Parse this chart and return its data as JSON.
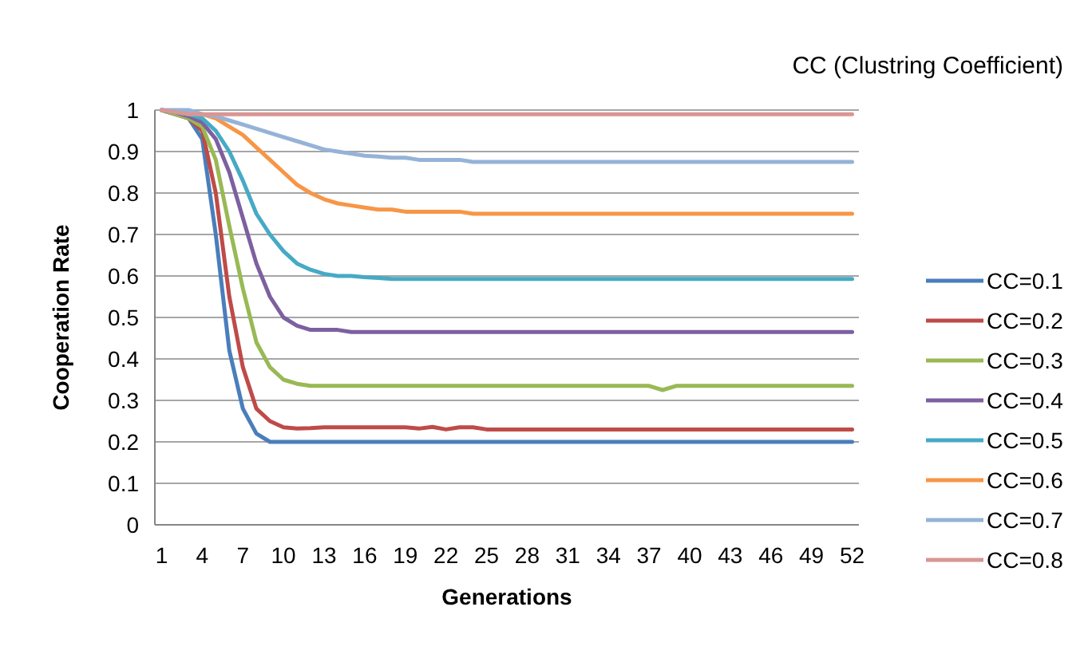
{
  "chart_data": {
    "type": "line",
    "legend_title": "CC (Clustring Coefficient)",
    "xlabel": "Generations",
    "ylabel": "Cooperation Rate",
    "x": [
      1,
      2,
      3,
      4,
      5,
      6,
      7,
      8,
      9,
      10,
      11,
      12,
      13,
      14,
      15,
      16,
      17,
      18,
      19,
      20,
      21,
      22,
      23,
      24,
      25,
      26,
      27,
      28,
      29,
      30,
      31,
      32,
      33,
      34,
      35,
      36,
      37,
      38,
      39,
      40,
      41,
      42,
      43,
      44,
      45,
      46,
      47,
      48,
      49,
      50,
      51,
      52
    ],
    "xlim": [
      0.5,
      52.5
    ],
    "xticks": [
      1,
      4,
      7,
      10,
      13,
      16,
      19,
      22,
      25,
      28,
      31,
      34,
      37,
      40,
      43,
      46,
      49,
      52
    ],
    "ylim": [
      0,
      1
    ],
    "yticks": [
      0,
      0.1,
      0.2,
      0.3,
      0.4,
      0.5,
      0.6,
      0.7,
      0.8,
      0.9,
      1
    ],
    "grid": "y",
    "legend": "right",
    "marker": "none",
    "line_style": "solid",
    "series": [
      {
        "name": "CC=0.1",
        "color": "#4a7ebb",
        "values": [
          1,
          0.99,
          0.98,
          0.93,
          0.7,
          0.42,
          0.28,
          0.22,
          0.2,
          0.2,
          0.2,
          0.2,
          0.2,
          0.2,
          0.2,
          0.2,
          0.2,
          0.2,
          0.2,
          0.2,
          0.2,
          0.2,
          0.2,
          0.2,
          0.2,
          0.2,
          0.2,
          0.2,
          0.2,
          0.2,
          0.2,
          0.2,
          0.2,
          0.2,
          0.2,
          0.2,
          0.2,
          0.2,
          0.2,
          0.2,
          0.2,
          0.2,
          0.2,
          0.2,
          0.2,
          0.2,
          0.2,
          0.2,
          0.2,
          0.2,
          0.2,
          0.2
        ]
      },
      {
        "name": "CC=0.2",
        "color": "#be4b48",
        "values": [
          1,
          0.99,
          0.98,
          0.95,
          0.8,
          0.55,
          0.38,
          0.28,
          0.25,
          0.235,
          0.232,
          0.233,
          0.235,
          0.235,
          0.235,
          0.235,
          0.235,
          0.235,
          0.235,
          0.232,
          0.236,
          0.23,
          0.235,
          0.235,
          0.23,
          0.23,
          0.23,
          0.23,
          0.23,
          0.23,
          0.23,
          0.23,
          0.23,
          0.23,
          0.23,
          0.23,
          0.23,
          0.23,
          0.23,
          0.23,
          0.23,
          0.23,
          0.23,
          0.23,
          0.23,
          0.23,
          0.23,
          0.23,
          0.23,
          0.23,
          0.23,
          0.23
        ]
      },
      {
        "name": "CC=0.3",
        "color": "#98b954",
        "values": [
          1,
          0.99,
          0.98,
          0.96,
          0.88,
          0.72,
          0.57,
          0.44,
          0.38,
          0.35,
          0.34,
          0.335,
          0.335,
          0.335,
          0.335,
          0.335,
          0.335,
          0.335,
          0.335,
          0.335,
          0.335,
          0.335,
          0.335,
          0.335,
          0.335,
          0.335,
          0.335,
          0.335,
          0.335,
          0.335,
          0.335,
          0.335,
          0.335,
          0.335,
          0.335,
          0.335,
          0.335,
          0.325,
          0.335,
          0.335,
          0.335,
          0.335,
          0.335,
          0.335,
          0.335,
          0.335,
          0.335,
          0.335,
          0.335,
          0.335,
          0.335,
          0.335
        ]
      },
      {
        "name": "CC=0.4",
        "color": "#7d60a0",
        "values": [
          1,
          0.995,
          0.985,
          0.97,
          0.93,
          0.85,
          0.74,
          0.63,
          0.55,
          0.5,
          0.48,
          0.47,
          0.47,
          0.47,
          0.465,
          0.465,
          0.465,
          0.465,
          0.465,
          0.465,
          0.465,
          0.465,
          0.465,
          0.465,
          0.465,
          0.465,
          0.465,
          0.465,
          0.465,
          0.465,
          0.465,
          0.465,
          0.465,
          0.465,
          0.465,
          0.465,
          0.465,
          0.465,
          0.465,
          0.465,
          0.465,
          0.465,
          0.465,
          0.465,
          0.465,
          0.465,
          0.465,
          0.465,
          0.465,
          0.465,
          0.465,
          0.465
        ]
      },
      {
        "name": "CC=0.5",
        "color": "#46aac5",
        "values": [
          1,
          0.995,
          0.99,
          0.98,
          0.95,
          0.9,
          0.83,
          0.75,
          0.7,
          0.66,
          0.63,
          0.615,
          0.605,
          0.6,
          0.6,
          0.597,
          0.595,
          0.593,
          0.593,
          0.593,
          0.593,
          0.593,
          0.593,
          0.593,
          0.593,
          0.593,
          0.593,
          0.593,
          0.593,
          0.593,
          0.593,
          0.593,
          0.593,
          0.593,
          0.593,
          0.593,
          0.593,
          0.593,
          0.593,
          0.593,
          0.593,
          0.593,
          0.593,
          0.593,
          0.593,
          0.593,
          0.593,
          0.593,
          0.593,
          0.593,
          0.593,
          0.593
        ]
      },
      {
        "name": "CC=0.6",
        "color": "#f79646",
        "values": [
          null,
          null,
          0.995,
          0.99,
          0.98,
          0.96,
          0.94,
          0.91,
          0.88,
          0.85,
          0.82,
          0.8,
          0.785,
          0.775,
          0.77,
          0.765,
          0.76,
          0.76,
          0.755,
          0.755,
          0.755,
          0.755,
          0.755,
          0.75,
          0.75,
          0.75,
          0.75,
          0.75,
          0.75,
          0.75,
          0.75,
          0.75,
          0.75,
          0.75,
          0.75,
          0.75,
          0.75,
          0.75,
          0.75,
          0.75,
          0.75,
          0.75,
          0.75,
          0.75,
          0.75,
          0.75,
          0.75,
          0.75,
          0.75,
          0.75,
          0.75,
          0.75
        ]
      },
      {
        "name": "CC=0.7",
        "color": "#95b3d7",
        "values": [
          1,
          1,
          1,
          0.99,
          0.985,
          0.975,
          0.965,
          0.955,
          0.945,
          0.935,
          0.925,
          0.915,
          0.905,
          0.9,
          0.895,
          0.89,
          0.888,
          0.885,
          0.885,
          0.88,
          0.88,
          0.88,
          0.88,
          0.875,
          0.875,
          0.875,
          0.875,
          0.875,
          0.875,
          0.875,
          0.875,
          0.875,
          0.875,
          0.875,
          0.875,
          0.875,
          0.875,
          0.875,
          0.875,
          0.875,
          0.875,
          0.875,
          0.875,
          0.875,
          0.875,
          0.875,
          0.875,
          0.875,
          0.875,
          0.875,
          0.875,
          0.875
        ]
      },
      {
        "name": "CC=0.8",
        "color": "#d99694",
        "values": [
          1,
          0.995,
          0.99,
          0.99,
          0.99,
          0.99,
          0.99,
          0.99,
          0.99,
          0.99,
          0.99,
          0.99,
          0.99,
          0.99,
          0.99,
          0.99,
          0.99,
          0.99,
          0.99,
          0.99,
          0.99,
          0.99,
          0.99,
          0.99,
          0.99,
          0.99,
          0.99,
          0.99,
          0.99,
          0.99,
          0.99,
          0.99,
          0.99,
          0.99,
          0.99,
          0.99,
          0.99,
          0.99,
          0.99,
          0.99,
          0.99,
          0.99,
          0.99,
          0.99,
          0.99,
          0.99,
          0.99,
          0.99,
          0.99,
          0.99,
          0.99,
          0.99
        ]
      }
    ]
  }
}
